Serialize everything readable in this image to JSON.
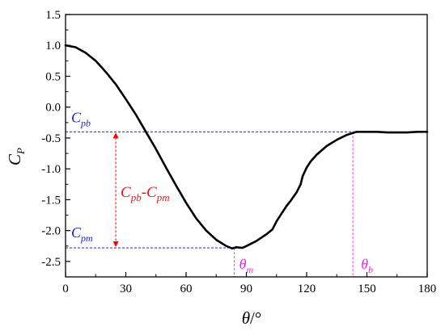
{
  "chart_data": {
    "type": "line",
    "xlabel": {
      "main": "θ",
      "suffix": "/°"
    },
    "ylabel": {
      "main": "C",
      "sub": "P"
    },
    "xlim": [
      0,
      180
    ],
    "ylim": [
      -2.75,
      1.5
    ],
    "xticks": [
      0,
      30,
      60,
      90,
      120,
      150,
      180
    ],
    "yticks": [
      1.5,
      1.0,
      0.5,
      0.0,
      -0.5,
      -1.0,
      -1.5,
      -2.0,
      -2.5
    ],
    "ytick_labels": [
      "1.5",
      "1.0",
      "0.5",
      "0.0",
      "-0.5",
      "-1.0",
      "-1.5",
      "-2.0",
      "-2.5"
    ],
    "grid": false,
    "series": [
      {
        "x": [
          0,
          5,
          10,
          15,
          20,
          25,
          30,
          35,
          40,
          45,
          50,
          55,
          60,
          65,
          70,
          75,
          80,
          83,
          85,
          88,
          90,
          95,
          100,
          103,
          105,
          108,
          110,
          112,
          115,
          117,
          118,
          120,
          122,
          125,
          130,
          135,
          140,
          143,
          145,
          150,
          155,
          160,
          165,
          170,
          175,
          180
        ],
        "y": [
          1.0,
          0.97,
          0.88,
          0.75,
          0.57,
          0.37,
          0.13,
          -0.12,
          -0.4,
          -0.68,
          -0.98,
          -1.27,
          -1.55,
          -1.8,
          -2.0,
          -2.15,
          -2.25,
          -2.29,
          -2.27,
          -2.28,
          -2.25,
          -2.17,
          -2.06,
          -1.98,
          -1.85,
          -1.7,
          -1.6,
          -1.52,
          -1.38,
          -1.25,
          -1.12,
          -0.98,
          -0.88,
          -0.77,
          -0.63,
          -0.53,
          -0.45,
          -0.42,
          -0.4,
          -0.4,
          -0.4,
          -0.41,
          -0.41,
          -0.41,
          -0.4,
          -0.4
        ],
        "color": "#000000"
      }
    ],
    "annotations": {
      "cpb_value": -0.4,
      "cpm_value": -2.28,
      "theta_m_x": 84,
      "theta_b_x": 143,
      "cpb_label": {
        "main": "C",
        "sub": "pb"
      },
      "cpm_label": {
        "main": "C",
        "sub": "pm"
      },
      "diff_label": {
        "a": "C",
        "a_sub": "pb",
        "dash": "-",
        "b": "C",
        "b_sub": "pm"
      },
      "theta_m_label": {
        "main": "θ",
        "sub": "m"
      },
      "theta_b_label": {
        "main": "θ",
        "sub": "b"
      },
      "colors": {
        "ref_line": "#0000cc",
        "label_blue": "#1a1adb",
        "arrow": "#ff0000",
        "diff_text": "#ee1111",
        "vline": "#ff33ff",
        "theta_text": "#ee22ee"
      }
    }
  }
}
